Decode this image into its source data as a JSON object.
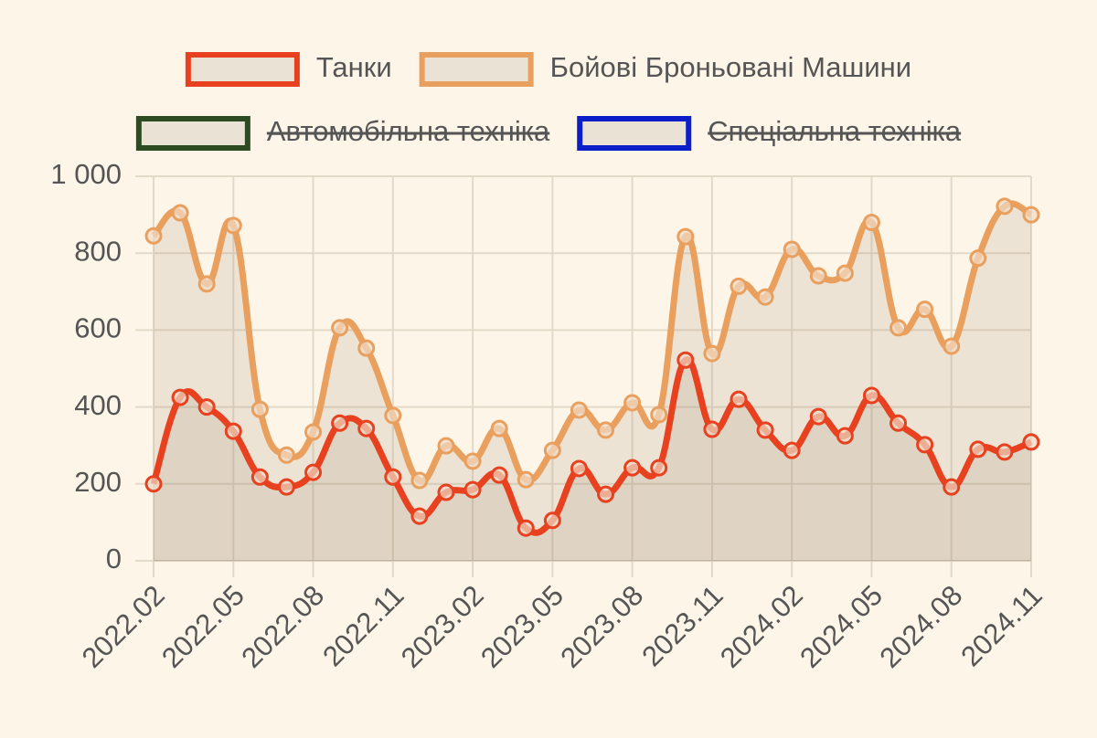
{
  "chart_data": {
    "type": "line",
    "categories": [
      "2022.02",
      null,
      null,
      "2022.05",
      null,
      null,
      "2022.08",
      null,
      null,
      "2022.11",
      null,
      null,
      "2023.02",
      null,
      null,
      "2023.05",
      null,
      null,
      "2023.08",
      null,
      null,
      "2023.11",
      null,
      null,
      "2024.02",
      null,
      null,
      "2024.05",
      null,
      null,
      "2024.08",
      null,
      null,
      "2024.11"
    ],
    "series": [
      {
        "name": "Танки",
        "color": "#e8411f",
        "values": [
          200,
          425,
          400,
          337,
          218,
          192,
          230,
          358,
          344,
          218,
          116,
          178,
          185,
          223,
          85,
          105,
          240,
          173,
          242,
          242,
          522,
          342,
          420,
          340,
          287,
          375,
          325,
          430,
          358,
          302,
          192,
          290,
          283,
          309
        ]
      },
      {
        "name": "Бойові Броньовані Машини",
        "color": "#e9a05e",
        "values": [
          845,
          905,
          720,
          872,
          394,
          275,
          335,
          606,
          553,
          378,
          209,
          299,
          259,
          344,
          211,
          287,
          392,
          340,
          411,
          380,
          843,
          539,
          714,
          686,
          810,
          741,
          748,
          880,
          606,
          654,
          558,
          787,
          922,
          900
        ]
      },
      {
        "name": "Автомобільна техніка",
        "color": "#2d4b22",
        "hidden": true
      },
      {
        "name": "Спеціальна техніка",
        "color": "#0b1ec8",
        "hidden": true
      }
    ],
    "ylim": [
      0,
      1000
    ],
    "yticks": [
      0,
      200,
      400,
      600,
      800,
      {
        "value": 1000,
        "label": "1 000"
      }
    ],
    "grid": true,
    "area": true,
    "legend": "top"
  }
}
